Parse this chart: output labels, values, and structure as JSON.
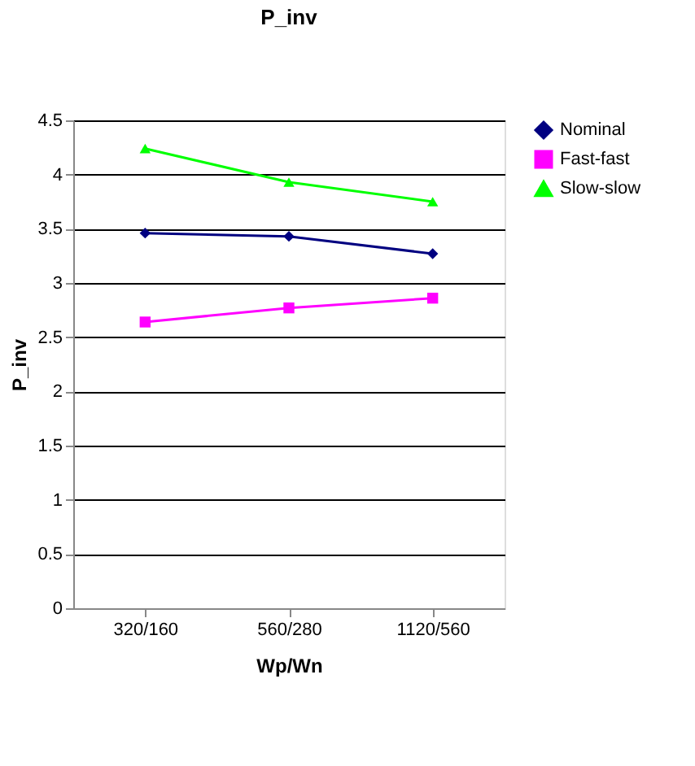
{
  "chart_data": {
    "type": "line",
    "title": "P_inv",
    "xlabel": "Wp/Wn",
    "ylabel": "P_inv",
    "categories": [
      "320/160",
      "560/280",
      "1120/560"
    ],
    "series": [
      {
        "name": "Nominal",
        "color": "#000080",
        "marker": "diamond",
        "values": [
          3.46,
          3.43,
          3.27
        ]
      },
      {
        "name": "Fast-fast",
        "color": "#ff00ff",
        "marker": "square",
        "values": [
          2.64,
          2.77,
          2.86
        ]
      },
      {
        "name": "Slow-slow",
        "color": "#00ff00",
        "marker": "triangle",
        "values": [
          4.24,
          3.93,
          3.75
        ]
      }
    ],
    "ylim": [
      0,
      4.5
    ],
    "yticks": [
      0,
      0.5,
      1,
      1.5,
      2,
      2.5,
      3,
      3.5,
      4,
      4.5
    ],
    "grid": "y",
    "legend": "right",
    "line_style": "solid"
  }
}
